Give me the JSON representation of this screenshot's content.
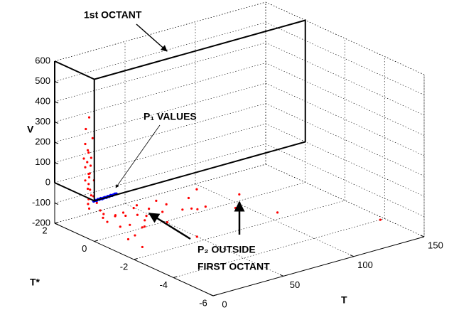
{
  "chart_data": {
    "type": "scatter3d",
    "xlabel": "T",
    "ylabel": "T*",
    "zlabel": "V",
    "xlim": [
      0,
      150
    ],
    "ylim": [
      -6,
      2
    ],
    "zlim": [
      -200,
      600
    ],
    "xticks": [
      0,
      50,
      100,
      150
    ],
    "yticks": [
      2,
      0,
      -2,
      -4,
      -6
    ],
    "zticks": [
      -200,
      -100,
      0,
      100,
      200,
      300,
      400,
      500,
      600
    ],
    "grid": true,
    "annotations": [
      "1st OCTANT",
      "P₁ VALUES",
      "P₂ OUTSIDE",
      "FIRST OCTANT"
    ],
    "series": [
      {
        "color": "#ff0000",
        "x": [
          2,
          1,
          3,
          2,
          1,
          3,
          2,
          1,
          2,
          3,
          2,
          1,
          3,
          2,
          4,
          2,
          3,
          1,
          4,
          2,
          5,
          3,
          6,
          4,
          2,
          7,
          8,
          12,
          15,
          18,
          22,
          25,
          28,
          30,
          33,
          36,
          40,
          44,
          47,
          10,
          14,
          20,
          26,
          35,
          50,
          55,
          60,
          65,
          48,
          75,
          89,
          95,
          3,
          6,
          12,
          147,
          70,
          5,
          9,
          16,
          42
        ],
        "y": [
          0.4,
          0.5,
          0.3,
          0.6,
          0.4,
          0.5,
          0.3,
          0.6,
          0.5,
          0.4,
          0.6,
          0.3,
          0.5,
          0.4,
          0.3,
          0.6,
          0.5,
          0.4,
          0.5,
          0.3,
          0.4,
          0.5,
          0.3,
          0.6,
          0.4,
          0.2,
          0.1,
          -0.2,
          0,
          -0.3,
          0.1,
          -0.4,
          0,
          -0.5,
          0.2,
          -0.2,
          -0.6,
          0,
          -0.3,
          -0.6,
          -0.8,
          -1,
          -0.7,
          -1.2,
          -0.9,
          -1.3,
          -0.5,
          -1,
          -1.5,
          -1.8,
          -1,
          -2.5,
          -1.5,
          -2,
          -1.2,
          -4,
          -0.2,
          -0.3,
          0.2,
          -1.4,
          -2.2
        ],
        "z": [
          390,
          330,
          290,
          250,
          230,
          210,
          195,
          180,
          165,
          150,
          135,
          120,
          105,
          95,
          80,
          70,
          55,
          40,
          25,
          10,
          -5,
          -20,
          -35,
          -50,
          -60,
          -70,
          -85,
          -90,
          -100,
          -95,
          -105,
          -100,
          -90,
          -110,
          -95,
          -100,
          -105,
          -85,
          -95,
          -120,
          -110,
          -125,
          -115,
          -120,
          -100,
          -90,
          -80,
          -110,
          -64,
          -100,
          -96,
          -130,
          -128,
          -150,
          -140,
          -200,
          -70,
          -100,
          -110,
          -95,
          -160
        ]
      },
      {
        "color": "#0000ff",
        "x": [
          1,
          2,
          3,
          4,
          5,
          6,
          7,
          8,
          9,
          10,
          11,
          12,
          13,
          14,
          15,
          16,
          17
        ],
        "y": [
          0.1,
          0.1,
          0.1,
          0.1,
          0.1,
          0.1,
          0.1,
          0.1,
          0.1,
          0.1,
          0.1,
          0.1,
          0.1,
          0.1,
          0.1,
          0.1,
          0.1
        ],
        "z": [
          -8,
          -6,
          -9,
          -5,
          -7,
          -4,
          -8,
          -6,
          -5,
          -7,
          -4,
          -6,
          -3,
          -5,
          -4,
          -2,
          -3
        ]
      }
    ]
  }
}
